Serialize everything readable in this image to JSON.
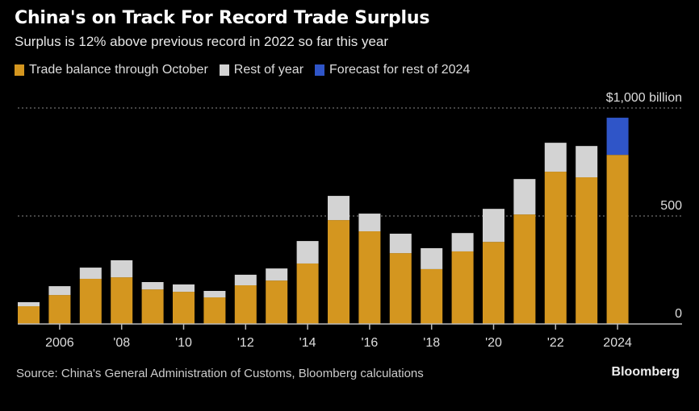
{
  "chart_data": {
    "type": "bar",
    "stacked": true,
    "title": "China's on Track For Record Trade Surplus",
    "subtitle": "Surplus is 12% above previous record in 2022 so far this year",
    "xlabel": "",
    "ylabel": "",
    "unit_label": "$1,000 billion",
    "ylim": [
      0,
      1000
    ],
    "y_ticks": [
      {
        "value": 0,
        "label": "0"
      },
      {
        "value": 500,
        "label": "500"
      },
      {
        "value": 1000,
        "label": "$1,000 billion"
      }
    ],
    "categories": [
      "2005",
      "2006",
      "2007",
      "2008",
      "2009",
      "2010",
      "2011",
      "2012",
      "2013",
      "2014",
      "2015",
      "2016",
      "2017",
      "2018",
      "2019",
      "2020",
      "2021",
      "2022",
      "2023",
      "2024"
    ],
    "x_tick_labels": [
      {
        "category": "2006",
        "label": "2006"
      },
      {
        "category": "2008",
        "label": "'08"
      },
      {
        "category": "2010",
        "label": "'10"
      },
      {
        "category": "2012",
        "label": "'12"
      },
      {
        "category": "2014",
        "label": "'14"
      },
      {
        "category": "2016",
        "label": "'16"
      },
      {
        "category": "2018",
        "label": "'18"
      },
      {
        "category": "2020",
        "label": "'20"
      },
      {
        "category": "2022",
        "label": "'22"
      },
      {
        "category": "2024",
        "label": "2024"
      }
    ],
    "series": [
      {
        "name": "Trade balance through October",
        "color": "#D4961F",
        "values": [
          82,
          134,
          209,
          216,
          160,
          149,
          123,
          179,
          201,
          280,
          481,
          429,
          328,
          254,
          336,
          380,
          507,
          705,
          679,
          783
        ]
      },
      {
        "name": "Rest of year",
        "color": "#D3D3D3",
        "values": [
          19,
          41,
          52,
          79,
          34,
          34,
          30,
          49,
          56,
          104,
          112,
          82,
          90,
          97,
          85,
          153,
          164,
          134,
          145,
          0
        ]
      },
      {
        "name": "Forecast for rest of 2024",
        "color": "#2F55C8",
        "values": [
          0,
          0,
          0,
          0,
          0,
          0,
          0,
          0,
          0,
          0,
          0,
          0,
          0,
          0,
          0,
          0,
          0,
          0,
          0,
          172
        ]
      }
    ],
    "grid": true,
    "legend_position": "top-left"
  },
  "legend": [
    {
      "label": "Trade balance through October",
      "color": "#D4961F"
    },
    {
      "label": "Rest of year",
      "color": "#D3D3D3"
    },
    {
      "label": "Forecast for rest of 2024",
      "color": "#2F55C8"
    }
  ],
  "footer": {
    "source": "Source: China's General Administration of Customs, Bloomberg calculations",
    "brand": "Bloomberg"
  }
}
